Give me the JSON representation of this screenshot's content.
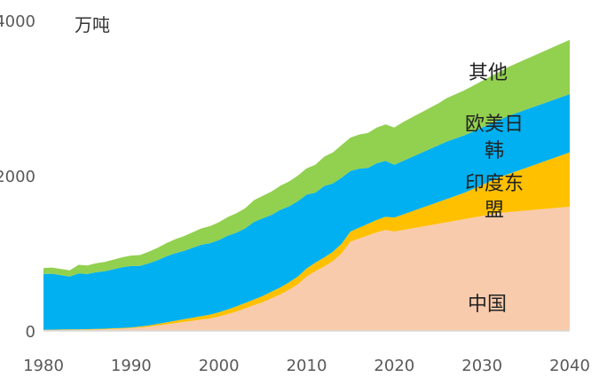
{
  "chart_data": {
    "type": "area",
    "stacked": true,
    "title": "",
    "xlabel": "",
    "ylabel": "",
    "unit_label": "万吨",
    "xlim": [
      1980,
      2040
    ],
    "ylim": [
      0,
      4000
    ],
    "x_ticks": [
      "1980",
      "1990",
      "2000",
      "2010",
      "2020",
      "2030",
      "2040"
    ],
    "y_ticks": [
      "0",
      "2000",
      "4000"
    ],
    "grid": false,
    "legend": "inline labels",
    "x": [
      1980,
      1981,
      1982,
      1983,
      1984,
      1985,
      1986,
      1987,
      1988,
      1989,
      1990,
      1991,
      1992,
      1993,
      1994,
      1995,
      1996,
      1997,
      1998,
      1999,
      2000,
      2001,
      2002,
      2003,
      2004,
      2005,
      2006,
      2007,
      2008,
      2009,
      2010,
      2011,
      2012,
      2013,
      2014,
      2015,
      2016,
      2017,
      2018,
      2019,
      2020,
      2021,
      2022,
      2023,
      2024,
      2025,
      2026,
      2027,
      2028,
      2029,
      2030,
      2031,
      2032,
      2033,
      2034,
      2035,
      2036,
      2037,
      2038,
      2039,
      2040
    ],
    "series": [
      {
        "name": "中国",
        "color": "#f8cbad",
        "values": [
          10,
          11,
          12,
          13,
          14,
          16,
          18,
          21,
          25,
          30,
          35,
          45,
          55,
          70,
          85,
          100,
          115,
          130,
          145,
          160,
          185,
          215,
          250,
          290,
          330,
          370,
          420,
          470,
          530,
          600,
          700,
          770,
          830,
          900,
          1000,
          1150,
          1190,
          1230,
          1270,
          1300,
          1280,
          1300,
          1320,
          1340,
          1360,
          1380,
          1400,
          1420,
          1440,
          1460,
          1480,
          1500,
          1520,
          1530,
          1540,
          1550,
          1560,
          1570,
          1580,
          1590,
          1600
        ]
      },
      {
        "name": "印度东盟",
        "color": "#ffc000",
        "values": [
          5,
          5,
          6,
          6,
          7,
          7,
          8,
          8,
          9,
          9,
          10,
          12,
          15,
          20,
          25,
          30,
          35,
          40,
          45,
          50,
          55,
          60,
          65,
          70,
          75,
          80,
          85,
          90,
          95,
          100,
          105,
          110,
          115,
          120,
          125,
          130,
          140,
          150,
          160,
          170,
          180,
          200,
          220,
          240,
          260,
          280,
          300,
          320,
          340,
          370,
          400,
          430,
          460,
          490,
          520,
          550,
          580,
          610,
          640,
          670,
          700
        ]
      },
      {
        "name": "欧美日韩",
        "color": "#00b0f0",
        "values": [
          720,
          720,
          700,
          680,
          720,
          710,
          730,
          740,
          760,
          780,
          790,
          780,
          800,
          820,
          850,
          870,
          880,
          900,
          920,
          920,
          930,
          950,
          950,
          960,
          1000,
          1000,
          990,
          1000,
          980,
          970,
          950,
          900,
          920,
          880,
          850,
          780,
          760,
          720,
          730,
          720,
          680,
          690,
          700,
          710,
          720,
          730,
          740,
          740,
          740,
          740,
          740,
          740,
          740,
          750,
          750,
          750,
          750,
          750,
          750,
          750,
          750
        ]
      },
      {
        "name": "其他",
        "color": "#92d050",
        "values": [
          75,
          80,
          80,
          80,
          110,
          110,
          115,
          120,
          125,
          130,
          135,
          140,
          150,
          160,
          170,
          180,
          190,
          200,
          210,
          220,
          230,
          240,
          250,
          260,
          280,
          290,
          300,
          310,
          320,
          330,
          340,
          360,
          380,
          400,
          420,
          430,
          440,
          450,
          460,
          470,
          480,
          500,
          510,
          520,
          530,
          540,
          560,
          570,
          580,
          590,
          600,
          610,
          620,
          630,
          640,
          650,
          660,
          670,
          680,
          690,
          700
        ]
      }
    ]
  }
}
